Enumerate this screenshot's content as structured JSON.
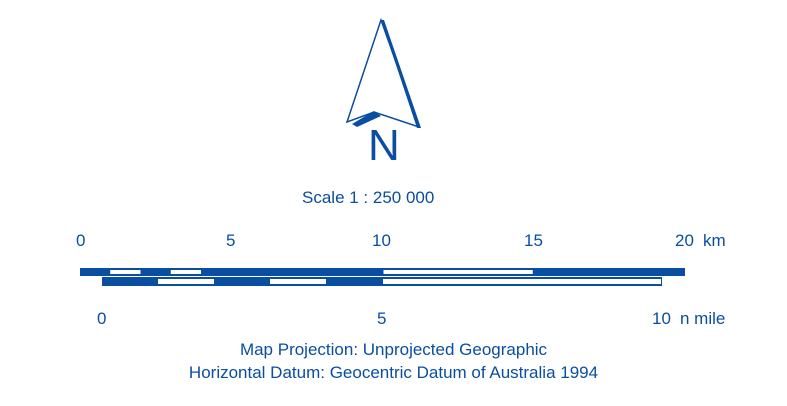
{
  "north_arrow": {
    "label": "N"
  },
  "scale": {
    "text": "Scale 1 : 250 000"
  },
  "km_bar": {
    "ticks": [
      "0",
      "5",
      "10",
      "15",
      "20"
    ],
    "unit": "km"
  },
  "nmile_bar": {
    "ticks": [
      "0",
      "5",
      "10"
    ],
    "unit": "n mile"
  },
  "projection": {
    "text": "Map Projection:  Unprojected Geographic"
  },
  "datum": {
    "text": "Horizontal Datum:  Geocentric Datum of Australia 1994"
  },
  "colors": {
    "primary": "#0a4ea2",
    "background": "#ffffff"
  }
}
